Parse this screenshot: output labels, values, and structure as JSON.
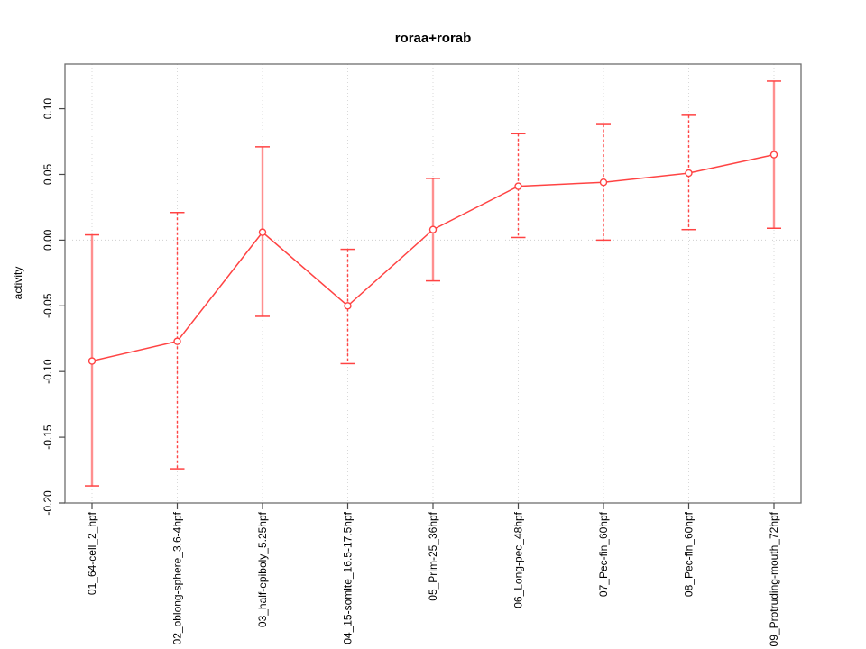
{
  "chart_data": {
    "type": "line",
    "title": "roraa+rorab",
    "xlabel": "",
    "ylabel": "activity",
    "ylim": [
      -0.2,
      0.134
    ],
    "yticks": [
      "0.10",
      "0.05",
      "0.00",
      "-0.05",
      "-0.10",
      "-0.15",
      "-0.20"
    ],
    "ytick_values": [
      0.1,
      0.05,
      0.0,
      -0.05,
      -0.1,
      -0.15,
      -0.2
    ],
    "grid": "vertical dotted gridline at each category",
    "zero_line": true,
    "legend": "none",
    "categories": [
      "01_64-cell_2_hpf",
      "02_oblong-sphere_3.6-4hpf",
      "03_half-epiboly_5.25hpf",
      "04_15-somite_16.5-17.5hpf",
      "05_Prim-25_36hpf",
      "06_Long-pec_48hpf",
      "07_Pec-fin_60hpf",
      "08_Pec-fin_60hpf",
      "09_Protruding-mouth_72hpf"
    ],
    "series": [
      {
        "name": "activity",
        "values": [
          -0.092,
          -0.077,
          0.006,
          -0.05,
          0.008,
          0.041,
          0.044,
          0.051,
          0.065
        ],
        "lower": [
          -0.187,
          -0.174,
          -0.058,
          -0.094,
          -0.031,
          0.002,
          0.0,
          0.008,
          0.009
        ],
        "upper": [
          0.004,
          0.021,
          0.071,
          -0.007,
          0.047,
          0.081,
          0.088,
          0.095,
          0.121
        ],
        "bar_styles": [
          "solid",
          "dashed",
          "solid",
          "dashed",
          "solid",
          "dashed",
          "dashed",
          "dashed",
          "solid"
        ]
      }
    ],
    "colors": {
      "line": "#ff4343",
      "point": "#ff4343",
      "error_bar_solid": "#ff8f8f",
      "error_bar_dashed": "#ff4343",
      "cap": "#ff4343",
      "grid": "#d9d9d9",
      "zero_line": "#cfcfcf",
      "axis_box": "#6e6e6e",
      "tick": "#4a4a4a",
      "text": "#000000"
    }
  }
}
